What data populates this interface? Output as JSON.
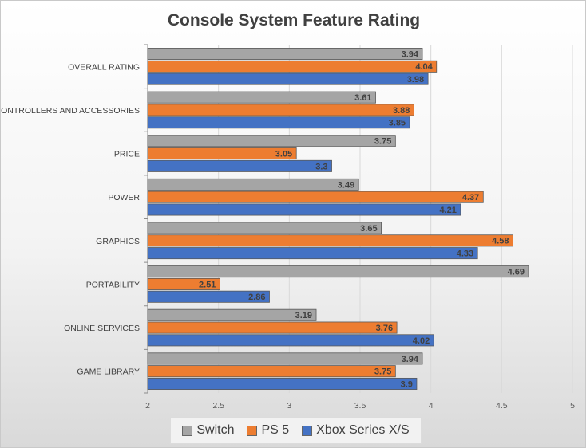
{
  "chart_data": {
    "type": "bar",
    "orientation": "horizontal",
    "title": "Console System Feature Rating",
    "categories": [
      "OVERALL RATING",
      "CONTROLLERS AND ACCESSORIES",
      "PRICE",
      "POWER",
      "GRAPHICS",
      "PORTABILITY",
      "ONLINE SERVICES",
      "GAME LIBRARY"
    ],
    "series": [
      {
        "name": "Switch",
        "color": "#A5A5A5",
        "values": [
          3.94,
          3.61,
          3.75,
          3.49,
          3.65,
          4.69,
          3.19,
          3.94
        ],
        "labels": [
          "3.94",
          "3.61",
          "3.75",
          "3.49",
          "3.65",
          "4.69",
          "3.19",
          "3.94"
        ]
      },
      {
        "name": "PS 5",
        "color": "#ED7D31",
        "values": [
          4.04,
          3.88,
          3.05,
          4.37,
          4.58,
          2.51,
          3.76,
          3.75
        ],
        "labels": [
          "4.04",
          "3.88",
          "3.05",
          "4.37",
          "4.58",
          "2.51",
          "3.76",
          "3.75"
        ]
      },
      {
        "name": "Xbox Series X/S",
        "color": "#4472C4",
        "values": [
          3.98,
          3.85,
          3.3,
          4.21,
          4.33,
          2.86,
          4.02,
          3.9
        ],
        "labels": [
          "3.98",
          "3.85",
          "3.3",
          "4.21",
          "4.33",
          "2.86",
          "4.02",
          "3.9"
        ]
      }
    ],
    "xlim": [
      2,
      5
    ],
    "x_ticks": [
      "2",
      "2.5",
      "3",
      "3.5",
      "4",
      "4.5",
      "5"
    ],
    "grid": true,
    "legend_position": "bottom"
  }
}
